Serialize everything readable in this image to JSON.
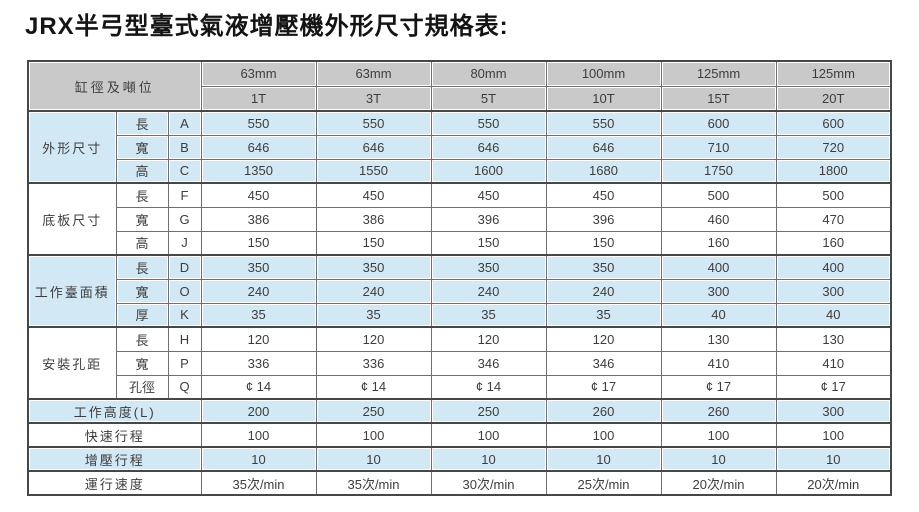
{
  "page": {
    "title": "JRX半弓型臺式氣液增壓機外形尺寸規格表:"
  },
  "table": {
    "corner_header": "缸徑及噸位",
    "columns": [
      {
        "bore": "63mm",
        "tonnage": "1T"
      },
      {
        "bore": "63mm",
        "tonnage": "3T"
      },
      {
        "bore": "80mm",
        "tonnage": "5T"
      },
      {
        "bore": "100mm",
        "tonnage": "10T"
      },
      {
        "bore": "125mm",
        "tonnage": "15T"
      },
      {
        "bore": "125mm",
        "tonnage": "20T"
      }
    ],
    "groups": [
      {
        "label": "外形尺寸",
        "tone": "blue",
        "rows": [
          {
            "dim": "長",
            "code": "A",
            "values": [
              "550",
              "550",
              "550",
              "550",
              "600",
              "600"
            ]
          },
          {
            "dim": "寬",
            "code": "B",
            "values": [
              "646",
              "646",
              "646",
              "646",
              "710",
              "720"
            ]
          },
          {
            "dim": "高",
            "code": "C",
            "values": [
              "1350",
              "1550",
              "1600",
              "1680",
              "1750",
              "1800"
            ]
          }
        ]
      },
      {
        "label": "底板尺寸",
        "tone": "white",
        "rows": [
          {
            "dim": "長",
            "code": "F",
            "values": [
              "450",
              "450",
              "450",
              "450",
              "500",
              "500"
            ]
          },
          {
            "dim": "寬",
            "code": "G",
            "values": [
              "386",
              "386",
              "396",
              "396",
              "460",
              "470"
            ]
          },
          {
            "dim": "高",
            "code": "J",
            "values": [
              "150",
              "150",
              "150",
              "150",
              "160",
              "160"
            ]
          }
        ]
      },
      {
        "label": "工作臺面積",
        "tone": "blue",
        "rows": [
          {
            "dim": "長",
            "code": "D",
            "values": [
              "350",
              "350",
              "350",
              "350",
              "400",
              "400"
            ]
          },
          {
            "dim": "寬",
            "code": "O",
            "values": [
              "240",
              "240",
              "240",
              "240",
              "300",
              "300"
            ]
          },
          {
            "dim": "厚",
            "code": "K",
            "values": [
              "35",
              "35",
              "35",
              "35",
              "40",
              "40"
            ]
          }
        ]
      },
      {
        "label": "安裝孔距",
        "tone": "white",
        "rows": [
          {
            "dim": "長",
            "code": "H",
            "values": [
              "120",
              "120",
              "120",
              "120",
              "130",
              "130"
            ]
          },
          {
            "dim": "寬",
            "code": "P",
            "values": [
              "336",
              "336",
              "346",
              "346",
              "410",
              "410"
            ]
          },
          {
            "dim": "孔徑",
            "code": "Q",
            "values": [
              "¢ 14",
              "¢ 14",
              "¢ 14",
              "¢ 17",
              "¢ 17",
              "¢ 17"
            ]
          }
        ]
      }
    ],
    "summary_rows": [
      {
        "label": "工作高度(L)",
        "tone": "blue",
        "values": [
          "200",
          "250",
          "250",
          "260",
          "260",
          "300"
        ]
      },
      {
        "label": "快速行程",
        "tone": "white",
        "values": [
          "100",
          "100",
          "100",
          "100",
          "100",
          "100"
        ]
      },
      {
        "label": "增壓行程",
        "tone": "blue",
        "values": [
          "10",
          "10",
          "10",
          "10",
          "10",
          "10"
        ]
      },
      {
        "label": "運行速度",
        "tone": "white",
        "values": [
          "35次/min",
          "35次/min",
          "30次/min",
          "25次/min",
          "20次/min",
          "20次/min"
        ]
      }
    ],
    "colors": {
      "header_bg": "#c9c9c9",
      "blue_row_bg": "#d2e8f5",
      "white_row_bg": "#ffffff",
      "grid_dark": "#474747",
      "grid_mid": "#6f6f6f",
      "text": "#3d3d3d"
    }
  }
}
